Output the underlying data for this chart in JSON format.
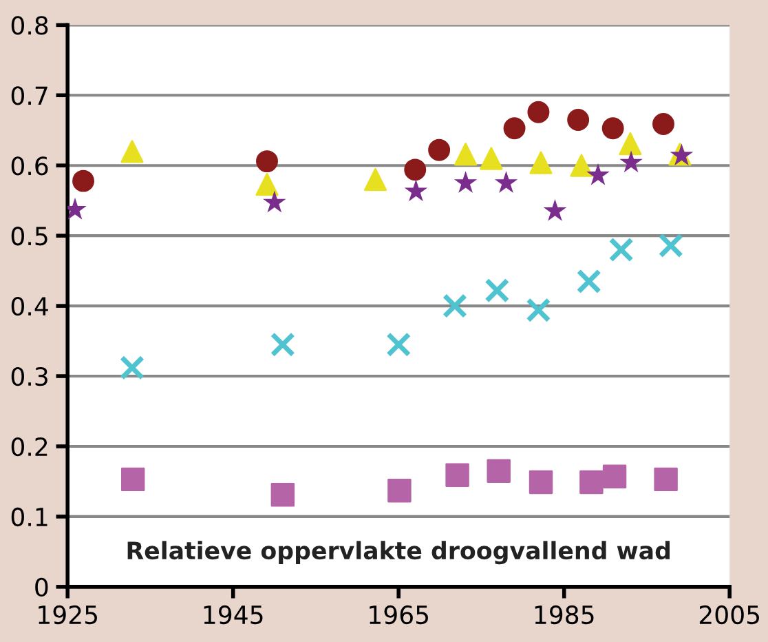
{
  "chart_data": {
    "type": "scatter",
    "annotations": [
      "Relatieve oppervlakte droogvallend wad"
    ],
    "xlim": [
      1925,
      2005
    ],
    "xticks": [
      1925,
      1945,
      1965,
      1985,
      2005
    ],
    "ylim": [
      0,
      0.8
    ],
    "yticks": [
      0,
      0.1,
      0.2,
      0.3,
      0.4,
      0.5,
      0.6,
      0.7,
      0.8
    ],
    "grid": "y",
    "legend": false,
    "series": [
      {
        "color": "#8b1a1a",
        "marker": "circle",
        "x": [
          1926.9,
          1949.1,
          1967.0,
          1969.9,
          1979.0,
          1981.9,
          1986.7,
          1990.9,
          1997.0
        ],
        "values": [
          0.578,
          0.606,
          0.594,
          0.622,
          0.653,
          0.676,
          0.665,
          0.653,
          0.659
        ]
      },
      {
        "color": "#e6e020",
        "marker": "triangle",
        "x": [
          1932.8,
          1949.1,
          1962.2,
          1973.1,
          1976.2,
          1982.2,
          1987.1,
          1993.0,
          1999.0
        ],
        "values": [
          0.62,
          0.573,
          0.58,
          0.616,
          0.61,
          0.604,
          0.6,
          0.631,
          0.616
        ]
      },
      {
        "color": "#7b2d8e",
        "marker": "star",
        "x": [
          1925.9,
          1950.0,
          1967.1,
          1973.1,
          1978.0,
          1983.9,
          1989.1,
          1993.1,
          1999.2
        ],
        "values": [
          0.537,
          0.547,
          0.563,
          0.575,
          0.575,
          0.535,
          0.586,
          0.604,
          0.614
        ]
      },
      {
        "color": "#4fc3d0",
        "marker": "cross",
        "x": [
          1932.8,
          1951.0,
          1965.0,
          1971.8,
          1976.9,
          1981.9,
          1988.0,
          1991.9,
          1997.9
        ],
        "values": [
          0.312,
          0.345,
          0.345,
          0.4,
          0.422,
          0.394,
          0.435,
          0.48,
          0.486
        ]
      },
      {
        "color": "#b565a7",
        "marker": "square",
        "x": [
          1932.9,
          1951.0,
          1965.1,
          1972.1,
          1977.1,
          1982.2,
          1988.3,
          1991.1,
          1997.3
        ],
        "values": [
          0.153,
          0.131,
          0.137,
          0.159,
          0.165,
          0.149,
          0.149,
          0.157,
          0.153
        ]
      }
    ]
  }
}
